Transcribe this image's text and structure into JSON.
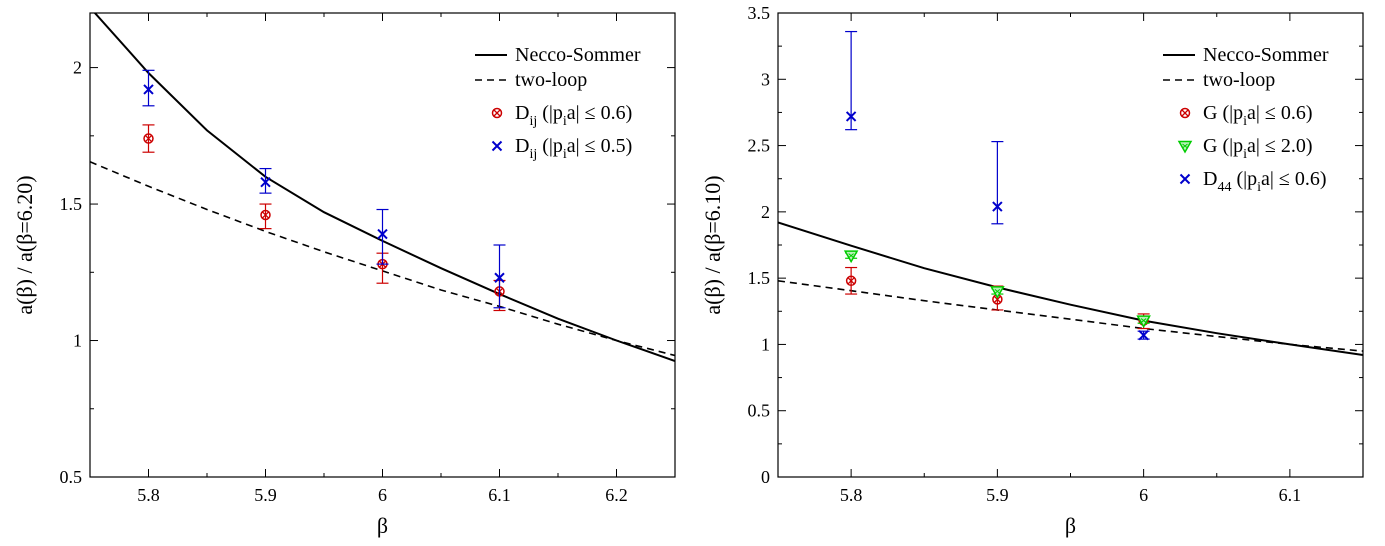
{
  "chart_data": [
    {
      "type": "scatter",
      "xlabel": "β",
      "ylabel": "a(β) / a(β=6.20)",
      "xlim": [
        5.75,
        6.25
      ],
      "ylim": [
        0.5,
        2.2
      ],
      "xticks": [
        5.8,
        5.9,
        6.0,
        6.1,
        6.2
      ],
      "xtick_labels": [
        "5.8",
        "5.9",
        "6",
        "6.1",
        "6.2"
      ],
      "yticks": [
        0.5,
        1.0,
        1.5,
        2.0
      ],
      "ytick_labels": [
        "0.5",
        "1",
        "1.5",
        "2"
      ],
      "legend_position": "top-right",
      "lines": [
        {
          "name": "Necco-Sommer",
          "style": "solid",
          "x": [
            5.75,
            5.8,
            5.85,
            5.9,
            5.95,
            6.0,
            6.05,
            6.1,
            6.15,
            6.2,
            6.25
          ],
          "y": [
            2.22,
            1.98,
            1.77,
            1.6,
            1.47,
            1.365,
            1.265,
            1.17,
            1.08,
            1.0,
            0.925
          ]
        },
        {
          "name": "two-loop",
          "style": "dashed",
          "x": [
            5.75,
            5.8,
            5.85,
            5.9,
            5.95,
            6.0,
            6.05,
            6.1,
            6.15,
            6.2,
            6.25
          ],
          "y": [
            1.655,
            1.565,
            1.48,
            1.4,
            1.325,
            1.255,
            1.185,
            1.125,
            1.06,
            1.0,
            0.945
          ]
        }
      ],
      "series": [
        {
          "name": "D",
          "sub": "ij",
          "range": " (|p",
          "range_sub": "i",
          "range_tail": "a| ≤ 0.6)",
          "marker": "circle-x",
          "color": "#cc0000",
          "x": [
            5.8,
            5.9,
            6.0,
            6.1
          ],
          "y": [
            1.74,
            1.46,
            1.28,
            1.18
          ],
          "yerr_low": [
            0.05,
            0.05,
            0.07,
            0.07
          ],
          "yerr_high": [
            0.05,
            0.04,
            0.04,
            0.04
          ]
        },
        {
          "name": "D",
          "sub": "ij",
          "range": " (|p",
          "range_sub": "i",
          "range_tail": "a| ≤ 0.5)",
          "marker": "x",
          "color": "#0000cc",
          "x": [
            5.8,
            5.9,
            6.0,
            6.1
          ],
          "y": [
            1.92,
            1.58,
            1.39,
            1.23
          ],
          "yerr_low": [
            0.06,
            0.04,
            0.11,
            0.11
          ],
          "yerr_high": [
            0.07,
            0.05,
            0.09,
            0.12
          ]
        }
      ]
    },
    {
      "type": "scatter",
      "xlabel": "β",
      "ylabel": "a(β) / a(β=6.10)",
      "xlim": [
        5.75,
        6.15
      ],
      "ylim": [
        0,
        3.5
      ],
      "xticks": [
        5.8,
        5.9,
        6.0,
        6.1
      ],
      "xtick_labels": [
        "5.8",
        "5.9",
        "6",
        "6.1"
      ],
      "yticks": [
        0,
        0.5,
        1.0,
        1.5,
        2.0,
        2.5,
        3.0,
        3.5
      ],
      "ytick_labels": [
        "0",
        "0.5",
        "1",
        "1.5",
        "2",
        "2.5",
        "3",
        "3.5"
      ],
      "legend_position": "top-right",
      "lines": [
        {
          "name": "Necco-Sommer",
          "style": "solid",
          "x": [
            5.75,
            5.8,
            5.85,
            5.9,
            5.95,
            6.0,
            6.05,
            6.1,
            6.15
          ],
          "y": [
            1.92,
            1.745,
            1.575,
            1.43,
            1.3,
            1.18,
            1.085,
            1.0,
            0.92
          ]
        },
        {
          "name": "two-loop",
          "style": "dashed",
          "x": [
            5.75,
            5.8,
            5.85,
            5.9,
            5.95,
            6.0,
            6.05,
            6.1,
            6.15
          ],
          "y": [
            1.48,
            1.405,
            1.33,
            1.26,
            1.19,
            1.12,
            1.06,
            1.0,
            0.95
          ]
        }
      ],
      "series": [
        {
          "name": "G",
          "sub": "",
          "range": " (|p",
          "range_sub": "i",
          "range_tail": "a| ≤ 0.6)",
          "marker": "circle-x",
          "color": "#cc0000",
          "x": [
            5.8,
            5.9,
            6.0
          ],
          "y": [
            1.48,
            1.34,
            1.18
          ],
          "yerr_low": [
            0.1,
            0.08,
            0.06
          ],
          "yerr_high": [
            0.1,
            0.1,
            0.05
          ]
        },
        {
          "name": "G",
          "sub": "",
          "range": " (|p",
          "range_sub": "i",
          "range_tail": "a| ≤ 2.0)",
          "marker": "triangle-down",
          "color": "#00cc00",
          "x": [
            5.8,
            5.9,
            6.0
          ],
          "y": [
            1.67,
            1.4,
            1.18
          ],
          "yerr_low": [
            0.02,
            0.02,
            0.02
          ],
          "yerr_high": [
            0.02,
            0.02,
            0.02
          ]
        },
        {
          "name": "D",
          "sub": "44",
          "range": " (|p",
          "range_sub": "i",
          "range_tail": "a| ≤ 0.6)",
          "marker": "x",
          "color": "#0000cc",
          "x": [
            5.8,
            5.9,
            6.0
          ],
          "y": [
            2.72,
            2.04,
            1.07
          ],
          "yerr_low": [
            0.1,
            0.13,
            0.03
          ],
          "yerr_high": [
            0.64,
            0.49,
            0.03
          ]
        }
      ]
    }
  ]
}
